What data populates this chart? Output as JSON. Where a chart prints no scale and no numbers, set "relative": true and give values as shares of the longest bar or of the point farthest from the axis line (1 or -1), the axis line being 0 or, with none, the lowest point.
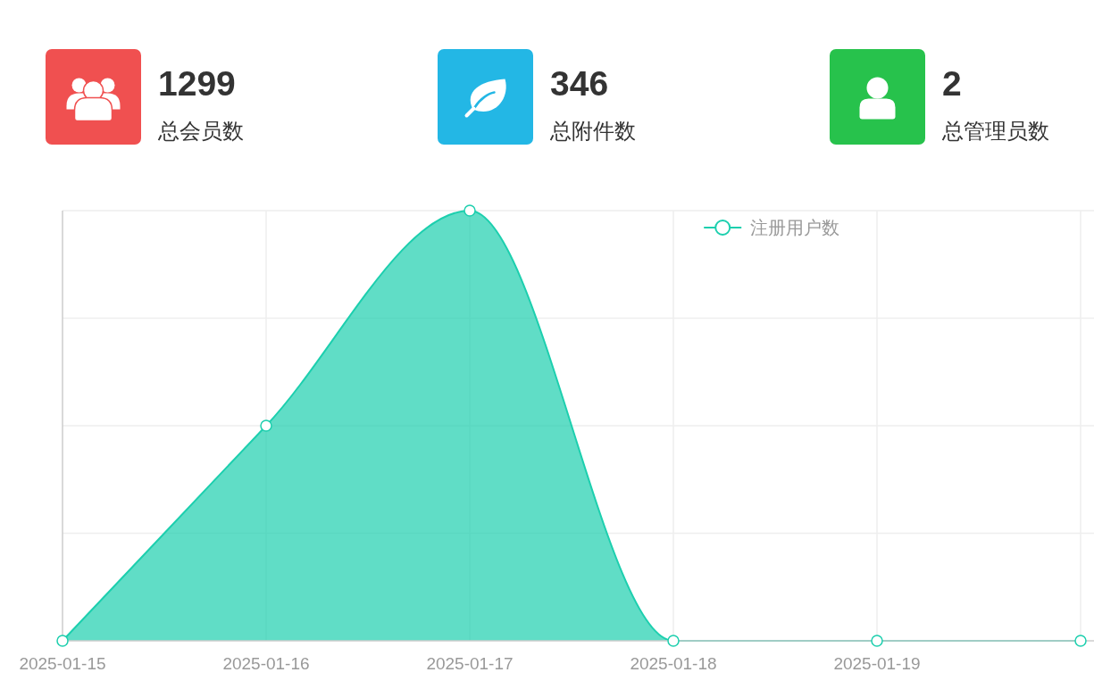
{
  "chart_data": [
    {
      "type": "other",
      "categories": [
        "总会员数",
        "总附件数",
        "总管理员数"
      ],
      "values": [
        1299,
        346,
        2
      ],
      "colors": [
        "#f05050",
        "#23b7e5",
        "#27c24c"
      ],
      "data_labels": true
    },
    {
      "type": "area",
      "categories": [
        "2025-01-15",
        "2025-01-16",
        "2025-01-17",
        "2025-01-18",
        "2025-01-19",
        null
      ],
      "series": [
        {
          "name": "注册用户数",
          "color": "#1ccfae",
          "values": [
            0,
            0.5,
            1,
            0,
            0,
            0
          ]
        }
      ],
      "relative": true,
      "grid": true,
      "legend": "top right",
      "marker": "circle"
    }
  ]
}
